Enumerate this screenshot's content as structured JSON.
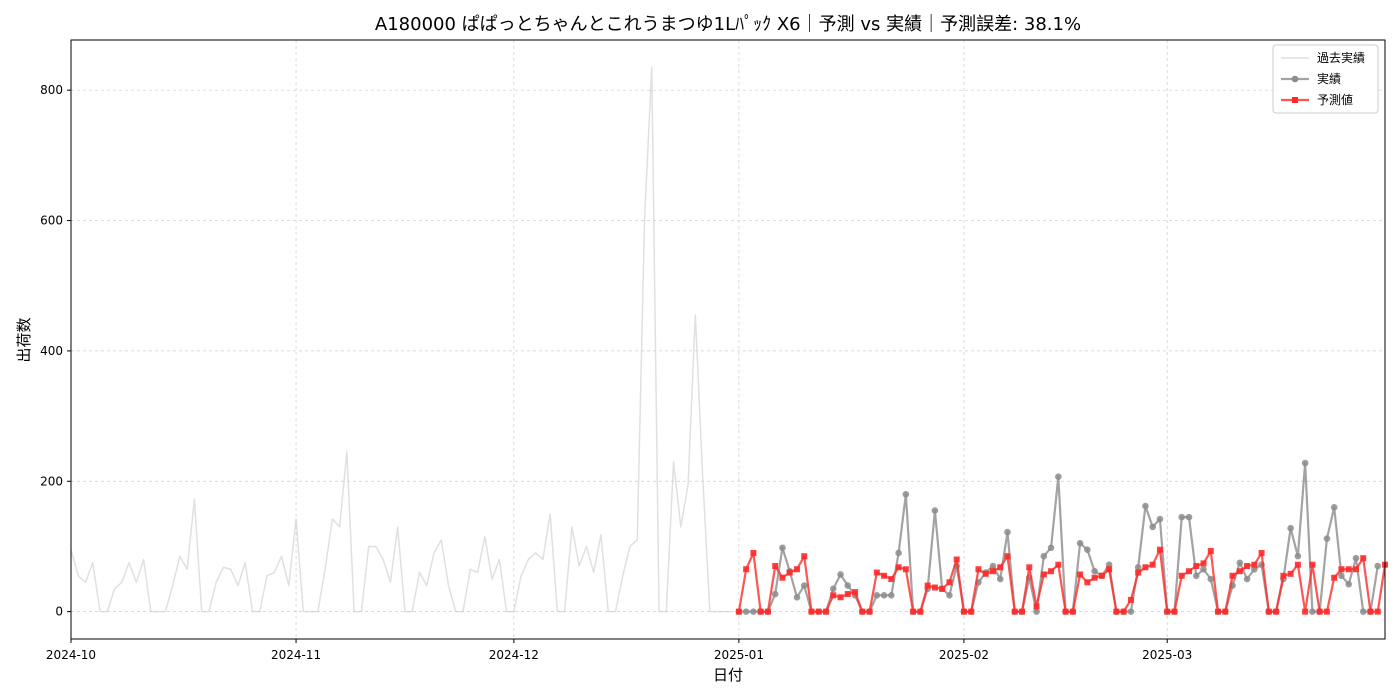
{
  "chart_data": {
    "type": "line",
    "title": "A180000 ぱぱっとちゃんとこれうまつゆ1Lﾊﾟｯｸ X6｜予測 vs 実績｜予測誤差: 38.1%",
    "xlabel": "日付",
    "ylabel": "出荷数",
    "x_range": [
      "2024-10-01",
      "2025-03-31"
    ],
    "ylim": [
      -42,
      877
    ],
    "y_ticks": [
      0,
      200,
      400,
      600,
      800
    ],
    "x_ticks": [
      {
        "date": "2024-10-01",
        "label": "2024-10"
      },
      {
        "date": "2024-11-01",
        "label": "2024-11"
      },
      {
        "date": "2024-12-01",
        "label": "2024-12"
      },
      {
        "date": "2025-01-01",
        "label": "2025-01"
      },
      {
        "date": "2025-02-01",
        "label": "2025-02"
      },
      {
        "date": "2025-03-01",
        "label": "2025-03"
      }
    ],
    "grid": true,
    "legend_position": "top-right",
    "series": [
      {
        "name": "過去実績",
        "color": "#d3d3d3",
        "marker": "none",
        "start_date": "2024-10-01",
        "values": [
          95,
          55,
          45,
          75,
          0,
          0,
          35,
          45,
          75,
          45,
          80,
          0,
          0,
          0,
          40,
          85,
          65,
          172,
          0,
          0,
          45,
          68,
          65,
          40,
          75,
          0,
          0,
          55,
          60,
          85,
          40,
          142,
          0,
          0,
          0,
          65,
          142,
          130,
          245,
          0,
          0,
          100,
          100,
          80,
          45,
          130,
          0,
          0,
          60,
          40,
          90,
          110,
          40,
          0,
          0,
          65,
          60,
          115,
          50,
          80,
          0,
          0,
          55,
          80,
          90,
          80,
          150,
          0,
          0,
          130,
          70,
          100,
          60,
          118,
          0,
          0,
          55,
          100,
          110,
          600,
          835,
          0,
          0,
          230,
          130,
          195,
          455,
          210,
          0,
          0,
          0,
          0
        ]
      },
      {
        "name": "実績",
        "color": "#8c8c8c",
        "marker": "circle",
        "start_date": "2025-01-01",
        "values": [
          0,
          0,
          0,
          0,
          0,
          27,
          98,
          62,
          22,
          40,
          0,
          0,
          0,
          35,
          57,
          40,
          25,
          0,
          0,
          25,
          25,
          25,
          90,
          180,
          0,
          0,
          35,
          155,
          35,
          25,
          70,
          0,
          0,
          45,
          60,
          70,
          50,
          122,
          0,
          0,
          52,
          0,
          85,
          98,
          207,
          0,
          0,
          105,
          95,
          62,
          55,
          72,
          0,
          0,
          0,
          68,
          162,
          130,
          142,
          0,
          0,
          145,
          145,
          55,
          65,
          50,
          0,
          0,
          40,
          75,
          50,
          65,
          72,
          0,
          0,
          50,
          128,
          85,
          228,
          0,
          0,
          112,
          160,
          55,
          42,
          82,
          0,
          0,
          70
        ]
      },
      {
        "name": "予測値",
        "color": "#ff2a2a",
        "marker": "square",
        "start_date": "2025-01-01",
        "values": [
          0,
          65,
          90,
          0,
          0,
          70,
          52,
          60,
          65,
          85,
          0,
          0,
          0,
          25,
          22,
          27,
          30,
          0,
          0,
          60,
          55,
          50,
          68,
          65,
          0,
          0,
          40,
          37,
          35,
          45,
          80,
          0,
          0,
          65,
          58,
          62,
          68,
          85,
          0,
          0,
          68,
          8,
          57,
          62,
          72,
          0,
          0,
          57,
          45,
          52,
          55,
          65,
          0,
          0,
          18,
          60,
          68,
          72,
          95,
          0,
          0,
          55,
          62,
          70,
          74,
          93,
          0,
          0,
          55,
          62,
          70,
          72,
          90,
          0,
          0,
          55,
          58,
          72,
          0,
          72,
          0,
          0,
          52,
          65,
          65,
          65,
          82,
          0,
          0,
          72
        ]
      }
    ]
  }
}
